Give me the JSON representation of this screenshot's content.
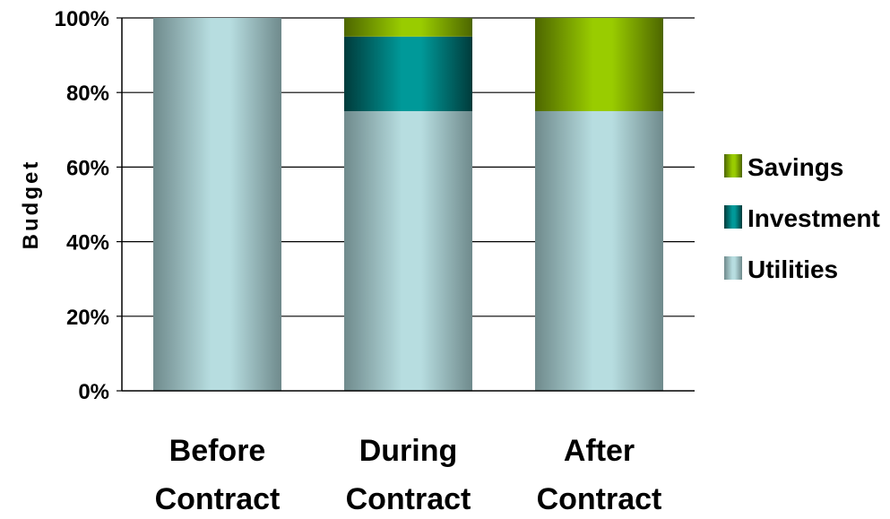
{
  "chart_data": {
    "type": "bar",
    "stacked": true,
    "categories": [
      [
        "Before",
        "Contract"
      ],
      [
        "During",
        "Contract"
      ],
      [
        "After",
        "Contract"
      ]
    ],
    "series": [
      {
        "name": "Utilities",
        "values": [
          100,
          75,
          75
        ],
        "color": "#b7dde0",
        "edge": "#6f8a8c"
      },
      {
        "name": "Investment",
        "values": [
          0,
          20,
          0
        ],
        "color": "#009999",
        "edge": "#003b3b"
      },
      {
        "name": "Savings",
        "values": [
          0,
          5,
          25
        ],
        "color": "#99cc00",
        "edge": "#4d6600"
      }
    ],
    "legend_order": [
      "Savings",
      "Investment",
      "Utilities"
    ],
    "title": "",
    "xlabel": "",
    "ylabel": "Budget",
    "ylim": [
      0,
      100
    ],
    "yticks": [
      "0%",
      "20%",
      "40%",
      "60%",
      "80%",
      "100%"
    ],
    "grid": true,
    "legend": "right"
  }
}
